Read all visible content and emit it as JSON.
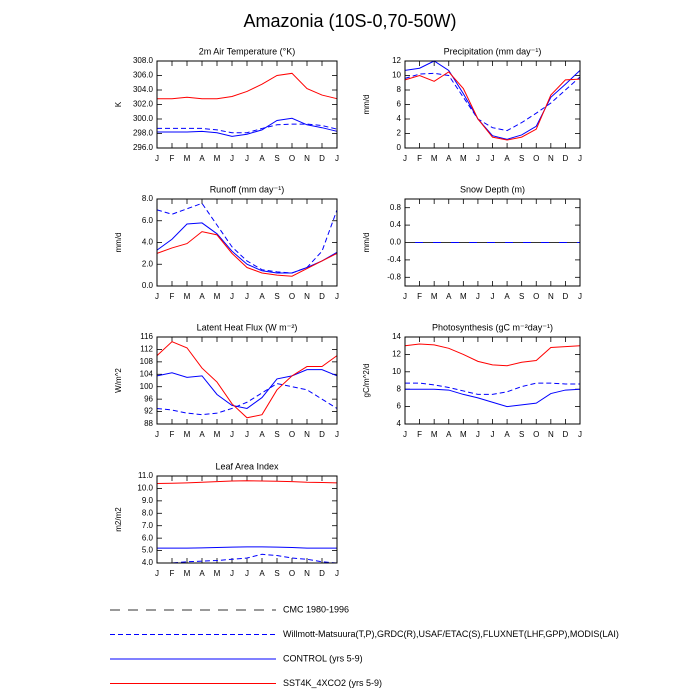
{
  "title": "Amazonia (10S-0,70-50W)",
  "chart_data": [
    {
      "type": "line",
      "title": "2m Air Temperature (°K)",
      "ylabel": "K",
      "categories": [
        "J",
        "F",
        "M",
        "A",
        "M",
        "J",
        "J",
        "A",
        "S",
        "O",
        "N",
        "D",
        "J"
      ],
      "ylim": [
        296,
        308
      ],
      "yticks": [
        {
          "value": 296,
          "label": "296.0"
        },
        {
          "value": 298,
          "label": "298.0"
        },
        {
          "value": 300,
          "label": "300.0"
        },
        {
          "value": 302,
          "label": "302.0"
        },
        {
          "value": 304,
          "label": "304.0"
        },
        {
          "value": 306,
          "label": "306.0"
        },
        {
          "value": 308,
          "label": "308.0"
        }
      ],
      "series": [
        {
          "color": "#0000ff",
          "dash": "dash",
          "values": [
            298.7,
            298.7,
            298.7,
            298.7,
            298.5,
            298.1,
            298.1,
            298.7,
            299.2,
            299.3,
            299.3,
            299.1,
            298.6
          ]
        },
        {
          "color": "#0000ff",
          "dash": "solid",
          "values": [
            298.2,
            298.2,
            298.2,
            298.3,
            298.1,
            297.6,
            297.9,
            298.5,
            299.8,
            300.1,
            299.2,
            298.8,
            298.3
          ]
        },
        {
          "color": "#ff0000",
          "dash": "solid",
          "values": [
            302.8,
            302.8,
            303.0,
            302.8,
            302.8,
            303.1,
            303.8,
            304.8,
            306.0,
            306.3,
            304.2,
            303.3,
            302.8
          ]
        }
      ]
    },
    {
      "type": "line",
      "title": "Precipitation (mm day⁻¹)",
      "ylabel": "mm/d",
      "categories": [
        "J",
        "F",
        "M",
        "A",
        "M",
        "J",
        "J",
        "A",
        "S",
        "O",
        "N",
        "D",
        "J"
      ],
      "ylim": [
        0,
        12
      ],
      "yticks": [
        0,
        2,
        4,
        6,
        8,
        10,
        12
      ],
      "series": [
        {
          "color": "#0000ff",
          "dash": "dash",
          "values": [
            9.6,
            10.2,
            10.3,
            10.0,
            7.0,
            4.0,
            2.8,
            2.4,
            3.5,
            4.8,
            6.2,
            8.0,
            9.8
          ]
        },
        {
          "color": "#0000ff",
          "dash": "solid",
          "values": [
            10.7,
            11.0,
            12.0,
            10.7,
            7.5,
            4.0,
            1.7,
            1.2,
            1.8,
            3.0,
            7.0,
            8.8,
            10.7
          ]
        },
        {
          "color": "#ff0000",
          "dash": "solid",
          "values": [
            9.4,
            10.0,
            9.2,
            10.5,
            8.2,
            4.0,
            1.5,
            1.1,
            1.5,
            2.6,
            7.3,
            9.4,
            9.5
          ]
        }
      ]
    },
    {
      "type": "line",
      "title": "Runoff (mm day⁻¹)",
      "ylabel": "mm/d",
      "categories": [
        "J",
        "F",
        "M",
        "A",
        "M",
        "J",
        "J",
        "A",
        "S",
        "O",
        "N",
        "D",
        "J"
      ],
      "ylim": [
        0,
        8
      ],
      "yticks": [
        {
          "value": 0,
          "label": "0.0"
        },
        {
          "value": 2,
          "label": "2.0"
        },
        {
          "value": 4,
          "label": "4.0"
        },
        {
          "value": 6,
          "label": "6.0"
        },
        {
          "value": 8,
          "label": "8.0"
        }
      ],
      "series": [
        {
          "color": "#0000ff",
          "dash": "dash",
          "values": [
            7.0,
            6.6,
            7.1,
            7.6,
            5.6,
            3.6,
            2.3,
            1.5,
            1.3,
            1.2,
            1.7,
            3.2,
            7.0
          ]
        },
        {
          "color": "#0000ff",
          "dash": "solid",
          "values": [
            3.3,
            4.3,
            5.7,
            5.8,
            4.8,
            3.2,
            2.0,
            1.4,
            1.2,
            1.2,
            1.7,
            2.3,
            3.1
          ]
        },
        {
          "color": "#ff0000",
          "dash": "solid",
          "values": [
            3.0,
            3.5,
            3.9,
            5.0,
            4.7,
            3.0,
            1.7,
            1.2,
            1.0,
            0.9,
            1.6,
            2.3,
            3.0
          ]
        }
      ]
    },
    {
      "type": "line",
      "title": "Snow Depth (m)",
      "ylabel": "mm/d",
      "categories": [
        "J",
        "F",
        "M",
        "A",
        "M",
        "J",
        "J",
        "A",
        "S",
        "O",
        "N",
        "D",
        "J"
      ],
      "ylim": [
        -1,
        1
      ],
      "yticks": [
        -0.8,
        -0.4,
        {
          "value": 0,
          "label": "0.0"
        },
        0.4,
        0.8
      ],
      "series": [
        {
          "color": "#ff0000",
          "dash": "solid",
          "values": [
            0,
            0,
            0,
            0,
            0,
            0,
            0,
            0,
            0,
            0,
            0,
            0,
            0
          ]
        },
        {
          "color": "#0000ff",
          "dash": "solid",
          "values": [
            0,
            0,
            0,
            0,
            0,
            0,
            0,
            0,
            0,
            0,
            0,
            0,
            0
          ]
        },
        {
          "color": "#333333",
          "dash": "long-dash",
          "values": [
            0,
            0,
            0,
            0,
            0,
            0,
            0,
            0,
            0,
            0,
            0,
            0,
            0
          ]
        }
      ]
    },
    {
      "type": "line",
      "title": "Latent Heat Flux (W m⁻²)",
      "ylabel": "W/m^2",
      "categories": [
        "J",
        "F",
        "M",
        "A",
        "M",
        "J",
        "J",
        "A",
        "S",
        "O",
        "N",
        "D",
        "J"
      ],
      "ylim": [
        88,
        116
      ],
      "yticks": [
        88,
        92,
        96,
        100,
        104,
        108,
        112,
        116
      ],
      "series": [
        {
          "color": "#0000ff",
          "dash": "dash",
          "values": [
            93,
            92.5,
            91.5,
            91,
            91.5,
            93,
            95,
            98,
            101,
            100,
            99,
            96,
            93
          ]
        },
        {
          "color": "#0000ff",
          "dash": "solid",
          "values": [
            103.5,
            104.5,
            103,
            103.5,
            97.5,
            94,
            93,
            96.5,
            102.5,
            103.5,
            105.5,
            105.5,
            103.5
          ]
        },
        {
          "color": "#ff0000",
          "dash": "solid",
          "values": [
            110,
            114.5,
            112.5,
            106,
            101.5,
            94.5,
            90,
            91,
            99,
            103.5,
            106.5,
            106.5,
            110
          ]
        }
      ]
    },
    {
      "type": "line",
      "title": "Photosynthesis (gC m⁻²day⁻¹)",
      "ylabel": "gC/m^2/d",
      "categories": [
        "J",
        "F",
        "M",
        "A",
        "M",
        "J",
        "J",
        "A",
        "S",
        "O",
        "N",
        "D",
        "J"
      ],
      "ylim": [
        4,
        14
      ],
      "yticks": [
        4,
        6,
        8,
        10,
        12,
        14
      ],
      "series": [
        {
          "color": "#0000ff",
          "dash": "dash",
          "values": [
            8.7,
            8.7,
            8.5,
            8.2,
            7.8,
            7.4,
            7.4,
            7.7,
            8.3,
            8.7,
            8.7,
            8.6,
            8.6
          ]
        },
        {
          "color": "#0000ff",
          "dash": "solid",
          "values": [
            8.0,
            8.0,
            8.0,
            7.9,
            7.4,
            7.0,
            6.5,
            6.0,
            6.2,
            6.4,
            7.5,
            7.9,
            8.0
          ]
        },
        {
          "color": "#ff0000",
          "dash": "solid",
          "values": [
            13.0,
            13.2,
            13.1,
            12.7,
            12.0,
            11.2,
            10.8,
            10.7,
            11.1,
            11.3,
            12.8,
            12.9,
            13.0
          ]
        }
      ]
    },
    {
      "type": "line",
      "title": "Leaf Area Index",
      "ylabel": "m2/m2",
      "categories": [
        "J",
        "F",
        "M",
        "A",
        "M",
        "J",
        "J",
        "A",
        "S",
        "O",
        "N",
        "D",
        "J"
      ],
      "ylim": [
        4,
        11
      ],
      "yticks": [
        {
          "value": 4,
          "label": "4.0"
        },
        {
          "value": 5,
          "label": "5.0"
        },
        {
          "value": 6,
          "label": "6.0"
        },
        {
          "value": 7,
          "label": "7.0"
        },
        {
          "value": 8,
          "label": "8.0"
        },
        {
          "value": 9,
          "label": "9.0"
        },
        {
          "value": 10,
          "label": "10.0"
        },
        {
          "value": 11,
          "label": "11.0"
        }
      ],
      "series": [
        {
          "color": "#0000ff",
          "dash": "dash",
          "values": [
            4.0,
            4.0,
            4.1,
            4.15,
            4.2,
            4.3,
            4.4,
            4.7,
            4.6,
            4.4,
            4.3,
            4.1,
            4.0
          ]
        },
        {
          "color": "#0000ff",
          "dash": "solid",
          "values": [
            5.2,
            5.2,
            5.2,
            5.22,
            5.25,
            5.28,
            5.3,
            5.3,
            5.28,
            5.25,
            5.2,
            5.2,
            5.2
          ]
        },
        {
          "color": "#ff0000",
          "dash": "solid",
          "values": [
            10.4,
            10.42,
            10.45,
            10.5,
            10.55,
            10.6,
            10.62,
            10.6,
            10.58,
            10.55,
            10.5,
            10.48,
            10.45
          ]
        }
      ]
    }
  ],
  "legend": [
    {
      "name": "CMC 1980-1996",
      "color": "#333333",
      "dash": "long-dash"
    },
    {
      "name": "Willmott-Matsuura(T,P),GRDC(R),USAF/ETAC(S),FLUXNET(LHF,GPP),MODIS(LAI)",
      "color": "#0000ff",
      "dash": "dash"
    },
    {
      "name": "CONTROL (yrs 5-9)",
      "color": "#0000ff",
      "dash": "solid"
    },
    {
      "name": "SST4K_4XCO2 (yrs 5-9)",
      "color": "#ff0000",
      "dash": "solid"
    }
  ]
}
